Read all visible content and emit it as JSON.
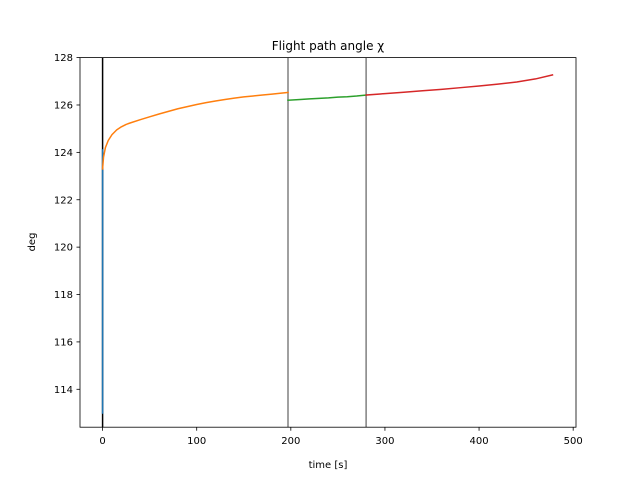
{
  "chart_data": {
    "type": "line",
    "title": "Flight path angle χ",
    "xlabel": "time [s]",
    "ylabel": "deg",
    "xlim": [
      -24,
      503
    ],
    "ylim": [
      112.4,
      128
    ],
    "xticks": [
      0,
      100,
      200,
      300,
      400,
      500
    ],
    "yticks": [
      114,
      116,
      118,
      120,
      122,
      124,
      126,
      128
    ],
    "grid": false,
    "vlines": [
      {
        "x": 0,
        "color": "#000000"
      },
      {
        "x": 197,
        "color": "#808080"
      },
      {
        "x": 280,
        "color": "#808080"
      }
    ],
    "series": [
      {
        "color": "#1f77b4",
        "x": [
          0,
          0,
          0,
          0
        ],
        "y": [
          113,
          117,
          121,
          124.1
        ]
      },
      {
        "color": "#ff7f0e",
        "x": [
          0,
          1,
          3,
          6,
          10,
          15,
          20,
          25,
          30,
          40,
          50,
          60,
          70,
          80,
          90,
          100,
          110,
          120,
          130,
          140,
          150,
          160,
          170,
          180,
          190,
          197
        ],
        "y": [
          123.3,
          123.8,
          124.2,
          124.5,
          124.75,
          124.95,
          125.08,
          125.18,
          125.25,
          125.38,
          125.5,
          125.62,
          125.73,
          125.84,
          125.93,
          126.02,
          126.1,
          126.17,
          126.23,
          126.29,
          126.34,
          126.38,
          126.42,
          126.46,
          126.5,
          126.53
        ]
      },
      {
        "color": "#2ca02c",
        "x": [
          197,
          210,
          220,
          230,
          240,
          250,
          260,
          270,
          280
        ],
        "y": [
          126.2,
          126.23,
          126.26,
          126.28,
          126.3,
          126.33,
          126.35,
          126.38,
          126.42
        ]
      },
      {
        "color": "#d62728",
        "x": [
          280,
          300,
          320,
          340,
          360,
          380,
          400,
          420,
          440,
          460,
          478
        ],
        "y": [
          126.42,
          126.48,
          126.54,
          126.6,
          126.66,
          126.73,
          126.8,
          126.88,
          126.97,
          127.1,
          127.27
        ]
      }
    ]
  }
}
